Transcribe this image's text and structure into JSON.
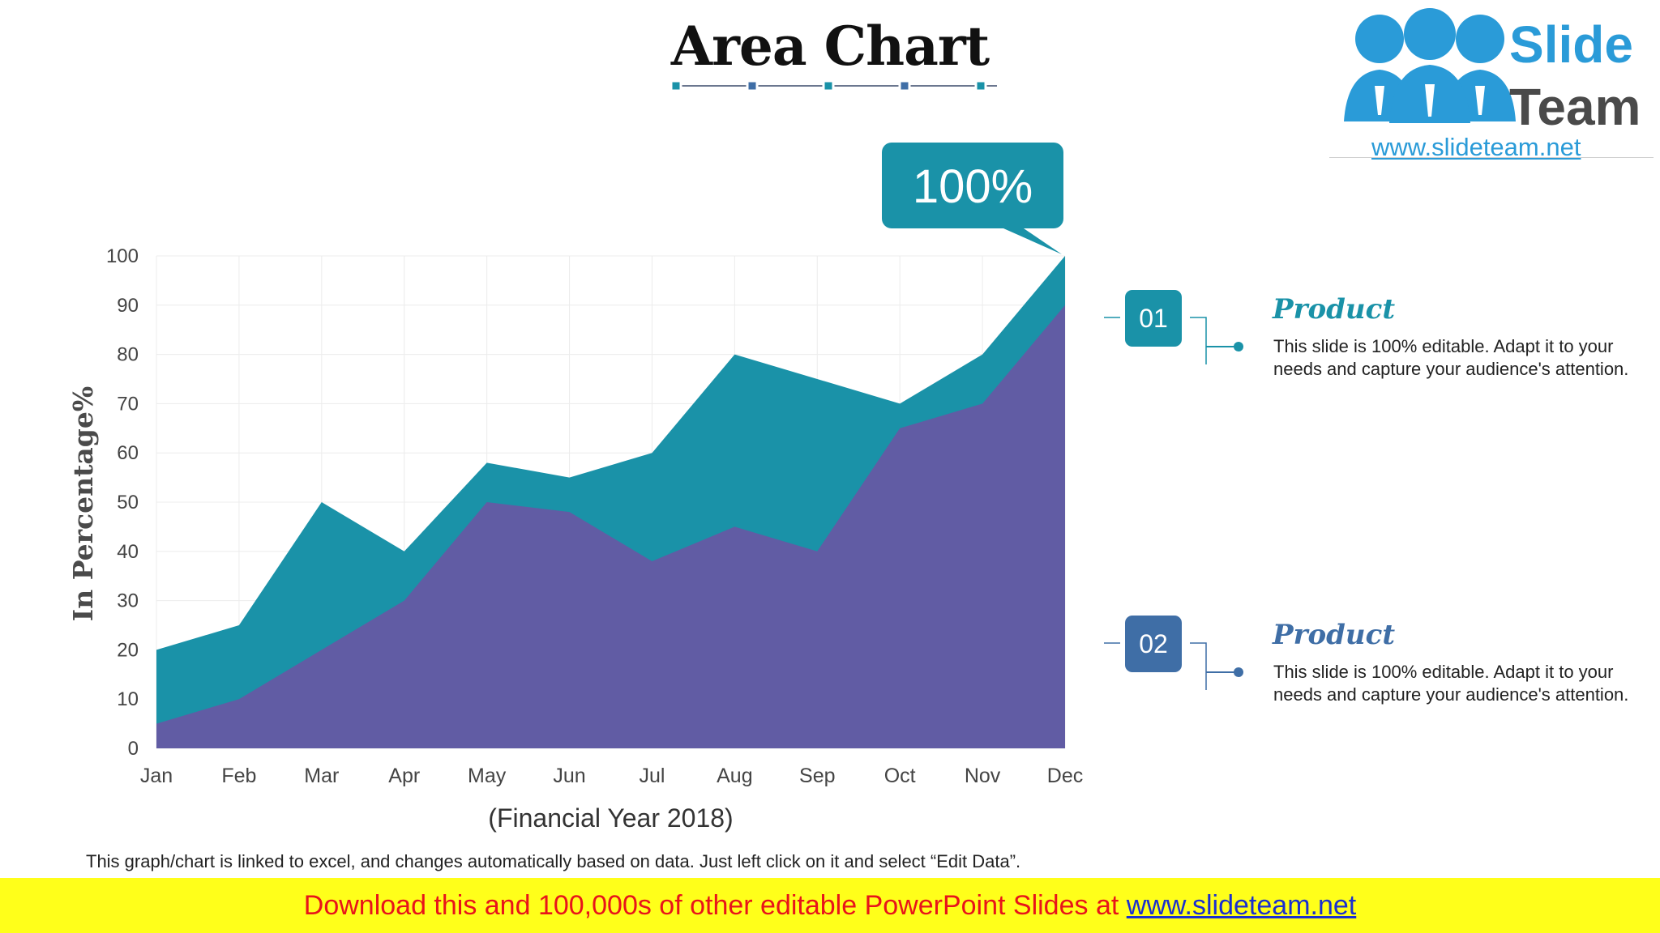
{
  "title": "Area Chart",
  "logo": {
    "word1": "Slide",
    "word2": "Team",
    "url": "www.slideteam.net"
  },
  "chart_data": {
    "type": "area",
    "categories": [
      "Jan",
      "Feb",
      "Mar",
      "Apr",
      "May",
      "Jun",
      "Jul",
      "Aug",
      "Sep",
      "Oct",
      "Nov",
      "Dec"
    ],
    "series": [
      {
        "values": [
          20,
          25,
          50,
          40,
          58,
          55,
          60,
          80,
          75,
          70,
          80,
          100
        ],
        "color": "#1a92a8"
      },
      {
        "values": [
          5,
          10,
          20,
          30,
          50,
          48,
          38,
          45,
          40,
          65,
          70,
          90
        ],
        "color": "#615ca4"
      }
    ],
    "y_ticks": [
      "0",
      "10",
      "20",
      "30",
      "40",
      "50",
      "60",
      "70",
      "80",
      "90",
      "100"
    ],
    "ylim": [
      0,
      100
    ],
    "ylabel": "In Percentage%",
    "xlabel": "(Financial Year 2018)",
    "grid": true,
    "callout": "100%"
  },
  "legend": [
    {
      "number": "01",
      "title": "Product",
      "description": "This slide is 100% editable. Adapt it to your needs and capture your audience's attention.",
      "color": "#1a92a8"
    },
    {
      "number": "02",
      "title": "Product",
      "description": "This slide is 100% editable. Adapt it to your needs and capture your audience's attention.",
      "color": "#3f6ea6"
    }
  ],
  "footer_note": "This graph/chart is linked to excel, and changes automatically based on data. Just left click on it and select “Edit Data”.",
  "banner": {
    "text": "Download this and 100,000s of other editable PowerPoint Slides at ",
    "link": "www.slideteam.net"
  }
}
